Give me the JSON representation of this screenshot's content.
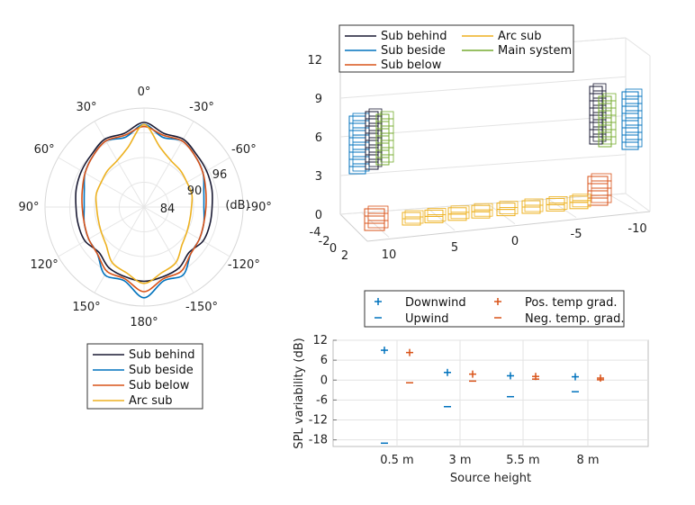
{
  "chart_data": [
    {
      "type": "polar-line",
      "r_unit_label": "(dB)",
      "r_ticks": [
        "84",
        "90",
        "96"
      ],
      "r_range": [
        78,
        102
      ],
      "angle_tick_labels": [
        "0°",
        "-30°",
        "-60°",
        "-90°",
        "-120°",
        "-150°",
        "180°",
        "150°",
        "120°",
        "90°",
        "60°",
        "30°"
      ],
      "angles_deg": [
        0,
        15,
        30,
        45,
        60,
        75,
        90,
        105,
        120,
        135,
        150,
        165,
        180
      ],
      "series": [
        {
          "name": "Sub behind",
          "values": [
            98.5,
            96.5,
            97,
            96,
            95.5,
            95,
            94.5,
            94.5,
            94.5,
            93.5,
            95,
            95.5,
            96
          ]
        },
        {
          "name": "Sub beside",
          "values": [
            98,
            95.5,
            96.5,
            95.5,
            94.5,
            93,
            92.5,
            93,
            93.5,
            94,
            97,
            96.5,
            100
          ]
        },
        {
          "name": "Sub below",
          "values": [
            97.5,
            96,
            96.5,
            95.5,
            94.5,
            93.5,
            93,
            93,
            93.5,
            94,
            96,
            96,
            98.5
          ]
        },
        {
          "name": "Arc sub",
          "values": [
            98,
            93,
            91,
            90.5,
            90,
            90,
            89.5,
            89.5,
            90,
            91,
            93.5,
            94.5,
            96.5
          ]
        }
      ],
      "legend": [
        "Sub behind",
        "Sub beside",
        "Sub below",
        "Arc sub"
      ],
      "legend_position": "below"
    },
    {
      "type": "3d-layout",
      "z_ticks": [
        "0",
        "3",
        "6",
        "9",
        "12"
      ],
      "x_ticks": [
        "10",
        "5",
        "0",
        "-5",
        "-10"
      ],
      "y_ticks": [
        "-4",
        "-2",
        "0",
        "2"
      ],
      "legend": [
        "Sub behind",
        "Sub beside",
        "Sub below",
        "Arc sub",
        "Main system"
      ],
      "legend_position": "top"
    },
    {
      "type": "scatter",
      "categories": [
        "0.5 m",
        "3 m",
        "5.5 m",
        "8 m"
      ],
      "xlabel": "Source height",
      "ylabel": "SPL variability (dB)",
      "yticks": [
        "12",
        "6",
        "0",
        "-6",
        "-12",
        "-18"
      ],
      "ylim": [
        -20,
        12
      ],
      "grid": true,
      "legend_position": "top",
      "series": [
        {
          "name": "Downwind",
          "marker": "+",
          "values": [
            9,
            2.3,
            1.3,
            1
          ]
        },
        {
          "name": "Upwind",
          "marker": "-",
          "values": [
            -19,
            -8,
            -5,
            -3.5
          ]
        },
        {
          "name": "Pos. temp grad.",
          "marker": "+",
          "values": [
            8.3,
            1.8,
            1.1,
            0.6
          ]
        },
        {
          "name": "Neg. temp. grad.",
          "marker": "-",
          "values": [
            -0.8,
            -0.3,
            0.3,
            0.1
          ]
        }
      ]
    }
  ],
  "colors": {
    "Sub behind": "#1a1a33",
    "Sub beside": "#0072BD",
    "Sub below": "#D95319",
    "Arc sub": "#EDB120",
    "Main system": "#77AC30",
    "Downwind": "#0072BD",
    "Upwind": "#0072BD",
    "Pos. temp grad.": "#D95319",
    "Neg. temp. grad.": "#D95319"
  }
}
